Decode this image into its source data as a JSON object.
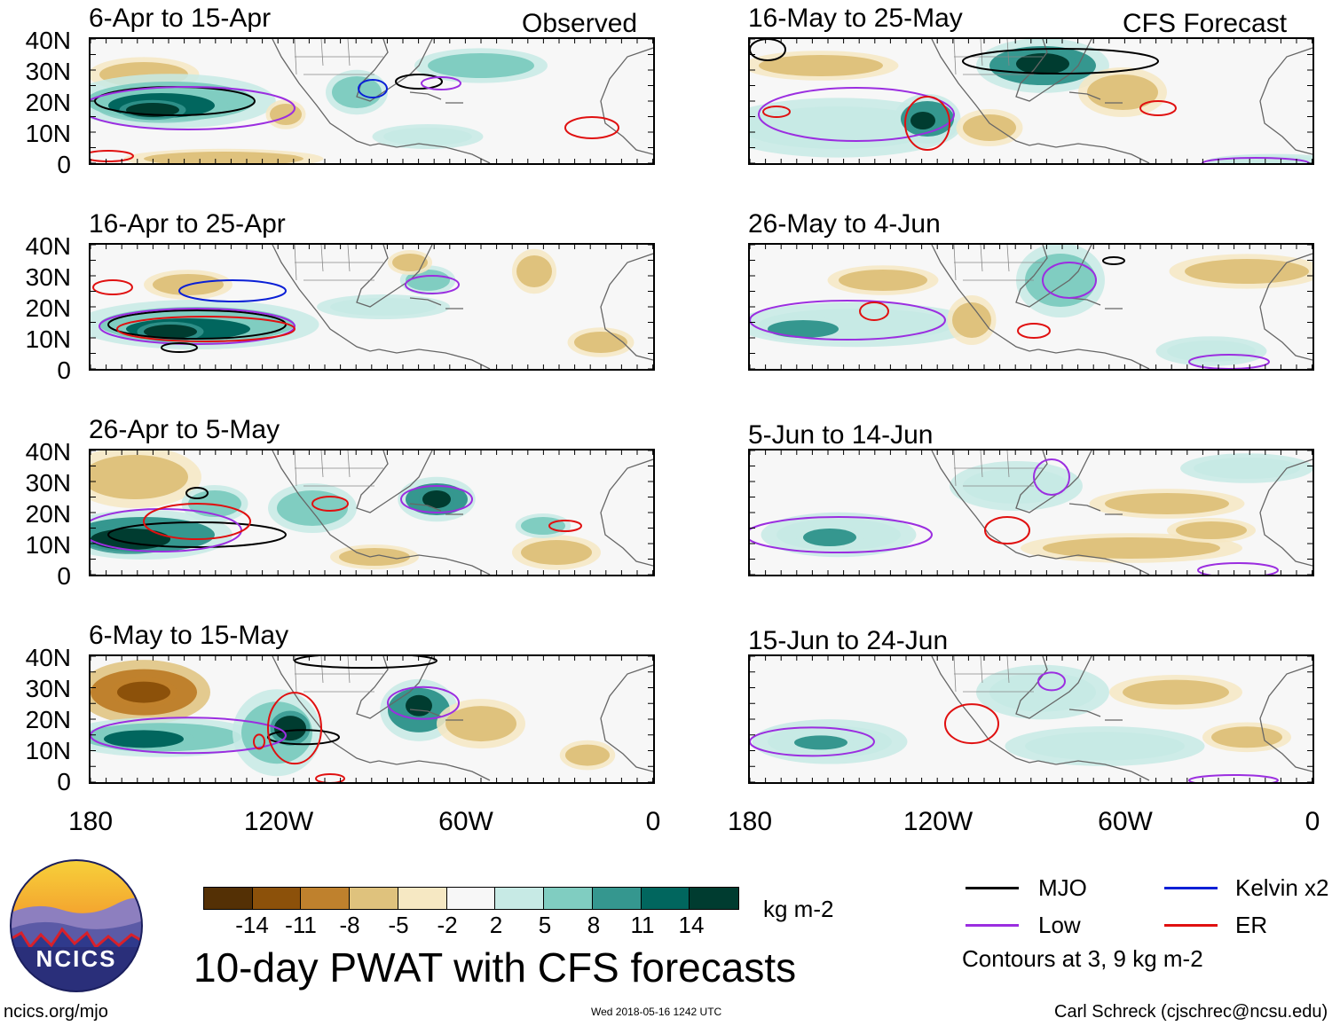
{
  "colors": {
    "mjo": "#000000",
    "kelvin": "#0a1fd6",
    "low": "#9b2ee0",
    "er": "#e01010",
    "scale": [
      "#543005",
      "#8c510a",
      "#bf812d",
      "#dfc27d",
      "#f6e8c3",
      "#f7f7f7",
      "#c7eae5",
      "#80cdc1",
      "#35978f",
      "#01665e",
      "#003c30"
    ]
  },
  "panels": {
    "observed_label": "Observed",
    "forecast_label": "CFS Forecast",
    "left": [
      {
        "title": "6-Apr to 15-Apr"
      },
      {
        "title": "16-Apr to 25-Apr"
      },
      {
        "title": "26-Apr to 5-May"
      },
      {
        "title": "6-May to 15-May"
      }
    ],
    "right": [
      {
        "title": "16-May to 25-May"
      },
      {
        "title": "26-May to 4-Jun"
      },
      {
        "title": "5-Jun to 14-Jun"
      },
      {
        "title": "15-Jun to 24-Jun"
      }
    ]
  },
  "axes": {
    "lat_labels": [
      "40N",
      "30N",
      "20N",
      "10N",
      "0"
    ],
    "lon_labels": [
      "180",
      "120W",
      "60W",
      "0"
    ]
  },
  "colorbar": {
    "ticks": [
      "-14",
      "-11",
      "-8",
      "-5",
      "-2",
      "2",
      "5",
      "8",
      "11",
      "14"
    ],
    "units": "kg m-2"
  },
  "legend": {
    "mjo": "MJO",
    "kelvin": "Kelvin x2",
    "low": "Low",
    "er": "ER",
    "note": "Contours at 3, 9 kg m-2"
  },
  "footer": {
    "title": "10-day PWAT with CFS forecasts",
    "logo_text": "NCICS",
    "site": "ncics.org/mjo",
    "timestamp": "Wed 2018-05-16 1242 UTC",
    "author": "Carl Schreck (cjschrec@ncsu.edu)"
  }
}
